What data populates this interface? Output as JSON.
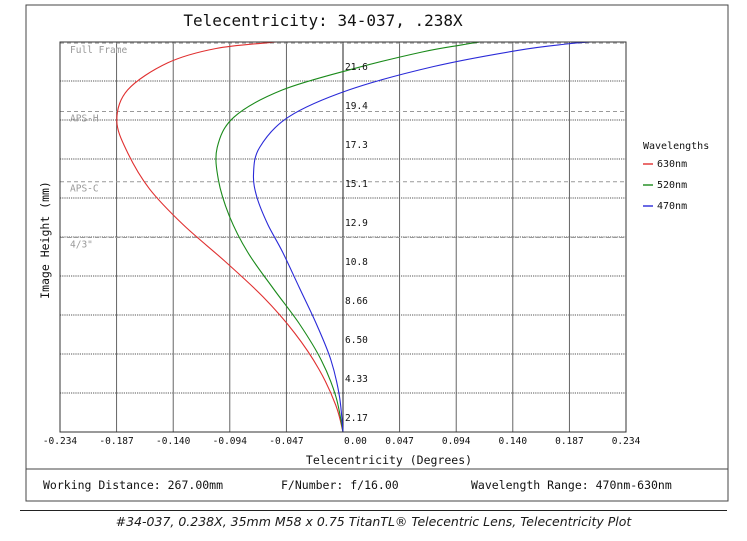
{
  "chart_data": {
    "type": "line",
    "title": "Telecentricity: 34-037, .238X",
    "xlabel": "Telecentricity (Degrees)",
    "ylabel": "Image Height (mm)",
    "xlim": [
      -0.234,
      0.234
    ],
    "ylim": [
      0,
      21.66
    ],
    "x_ticks": [
      "-0.234",
      "-0.187",
      "-0.140",
      "-0.094",
      "-0.047",
      "0.00",
      "0.047",
      "0.094",
      "0.140",
      "0.187",
      "0.234"
    ],
    "y_ticks": [
      "2.17",
      "4.33",
      "6.50",
      "8.66",
      "10.8",
      "12.9",
      "15.1",
      "17.3",
      "19.4",
      "21.6"
    ],
    "grid": true,
    "sensor_lines": [
      {
        "label": "Full Frame",
        "y": 21.6
      },
      {
        "label": "APS-H",
        "y": 17.8
      },
      {
        "label": "APS-C",
        "y": 13.9
      },
      {
        "label": "4/3\"",
        "y": 10.8
      }
    ],
    "legend": {
      "title": "Wavelengths",
      "position": "right"
    },
    "series": [
      {
        "name": "630nm",
        "color": "#e03030",
        "points": [
          [
            0,
            0
          ],
          [
            -0.006,
            1.5
          ],
          [
            -0.02,
            3.5
          ],
          [
            -0.04,
            5.5
          ],
          [
            -0.066,
            7.5
          ],
          [
            -0.098,
            9.5
          ],
          [
            -0.132,
            11.5
          ],
          [
            -0.16,
            13.5
          ],
          [
            -0.178,
            15.5
          ],
          [
            -0.187,
            17.3
          ],
          [
            -0.178,
            19.0
          ],
          [
            -0.145,
            20.5
          ],
          [
            -0.105,
            21.3
          ],
          [
            -0.055,
            21.66
          ]
        ]
      },
      {
        "name": "520nm",
        "color": "#1a8a1a",
        "points": [
          [
            0,
            0
          ],
          [
            -0.006,
            2.0
          ],
          [
            -0.018,
            4.0
          ],
          [
            -0.036,
            6.0
          ],
          [
            -0.058,
            8.0
          ],
          [
            -0.079,
            10.0
          ],
          [
            -0.094,
            12.0
          ],
          [
            -0.103,
            14.0
          ],
          [
            -0.104,
            15.8
          ],
          [
            -0.09,
            17.5
          ],
          [
            -0.05,
            19.0
          ],
          [
            0.01,
            20.2
          ],
          [
            0.065,
            21.1
          ],
          [
            0.098,
            21.5
          ],
          [
            0.113,
            21.66
          ]
        ]
      },
      {
        "name": "470nm",
        "color": "#2a2ad8",
        "points": [
          [
            0,
            0
          ],
          [
            -0.003,
            2.0
          ],
          [
            -0.01,
            4.0
          ],
          [
            -0.022,
            6.0
          ],
          [
            -0.036,
            8.0
          ],
          [
            -0.05,
            10.0
          ],
          [
            -0.062,
            11.5
          ],
          [
            -0.071,
            13.0
          ],
          [
            -0.074,
            14.3
          ],
          [
            -0.069,
            15.8
          ],
          [
            -0.045,
            17.5
          ],
          [
            0.005,
            19.0
          ],
          [
            0.075,
            20.3
          ],
          [
            0.145,
            21.2
          ],
          [
            0.185,
            21.55
          ],
          [
            0.205,
            21.66
          ]
        ]
      }
    ]
  },
  "footer": {
    "working_distance": "Working Distance: 267.00mm",
    "f_number": "F/Number: f/16.00",
    "wavelength_range": "Wavelength Range: 470nm-630nm"
  },
  "caption": "#34-037, 0.238X, 35mm M58 x 0.75 TitanTL® Telecentric Lens, Telecentricity Plot"
}
